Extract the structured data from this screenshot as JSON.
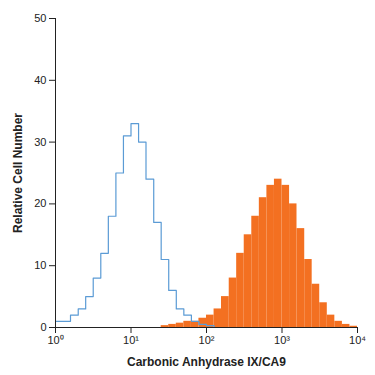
{
  "chart_data": {
    "type": "histogram",
    "xlabel": "Carbonic Anhydrase IX/CA9",
    "ylabel": "Relative Cell Number",
    "log": "x",
    "xlim": [
      1,
      10000
    ],
    "ylim": [
      0,
      50
    ],
    "xticks": [
      {
        "value": 1,
        "label": "10⁰"
      },
      {
        "value": 10,
        "label": "10¹"
      },
      {
        "value": 100,
        "label": "10²"
      },
      {
        "value": 1000,
        "label": "10³"
      },
      {
        "value": 10000,
        "label": "10⁴"
      }
    ],
    "yticks": [
      0,
      10,
      20,
      30,
      40,
      50
    ],
    "bins": [
      1,
      1.26,
      1.58,
      2,
      2.51,
      3.16,
      3.98,
      5.01,
      6.31,
      7.94,
      10,
      12.6,
      15.8,
      20,
      25.1,
      31.6,
      39.8,
      50.1,
      63.1,
      79.4,
      100,
      126,
      158,
      200,
      251,
      316,
      398,
      501,
      631,
      794,
      1000,
      1260,
      1580,
      2000,
      2510,
      3160,
      3980,
      5010,
      6310,
      7940,
      10000
    ],
    "series": [
      {
        "type": "bar",
        "color": "#f37021",
        "values": [
          0,
          0,
          0,
          0,
          0,
          0,
          0,
          0,
          0,
          0,
          0,
          0,
          0,
          0,
          0.3,
          0.5,
          0.7,
          1,
          1,
          1.5,
          2,
          3,
          5,
          8,
          12,
          15,
          18,
          21,
          23,
          24,
          23,
          20,
          16,
          11,
          7,
          4,
          2,
          1,
          0.5,
          0.2
        ]
      },
      {
        "type": "step",
        "color": "#5b9bd5",
        "values": [
          1,
          1,
          2,
          3,
          5,
          8,
          12,
          18,
          25,
          31,
          33,
          30,
          24,
          17,
          11,
          6,
          3,
          2,
          1,
          0.5,
          0.3,
          0,
          0,
          0,
          0,
          0,
          0,
          0,
          0,
          0,
          0,
          0,
          0,
          0,
          0,
          0,
          0,
          0,
          0,
          0
        ]
      }
    ]
  }
}
